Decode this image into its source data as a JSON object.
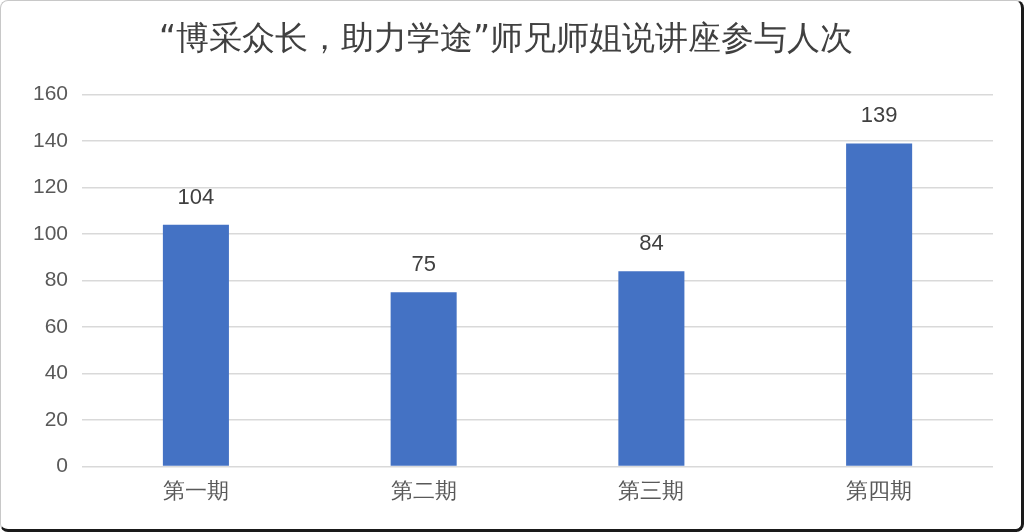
{
  "chart_data": {
    "type": "bar",
    "title": "“博采众长，助力学途”师兄师姐说讲座参与人次",
    "categories": [
      "第一期",
      "第二期",
      "第三期",
      "第四期"
    ],
    "values": [
      104,
      75,
      84,
      139
    ],
    "color": "#4472c4",
    "ylim": [
      0,
      160
    ],
    "yticks": [
      0,
      20,
      40,
      60,
      80,
      100,
      120,
      140,
      160
    ],
    "grid": "y",
    "data_labels": true
  }
}
